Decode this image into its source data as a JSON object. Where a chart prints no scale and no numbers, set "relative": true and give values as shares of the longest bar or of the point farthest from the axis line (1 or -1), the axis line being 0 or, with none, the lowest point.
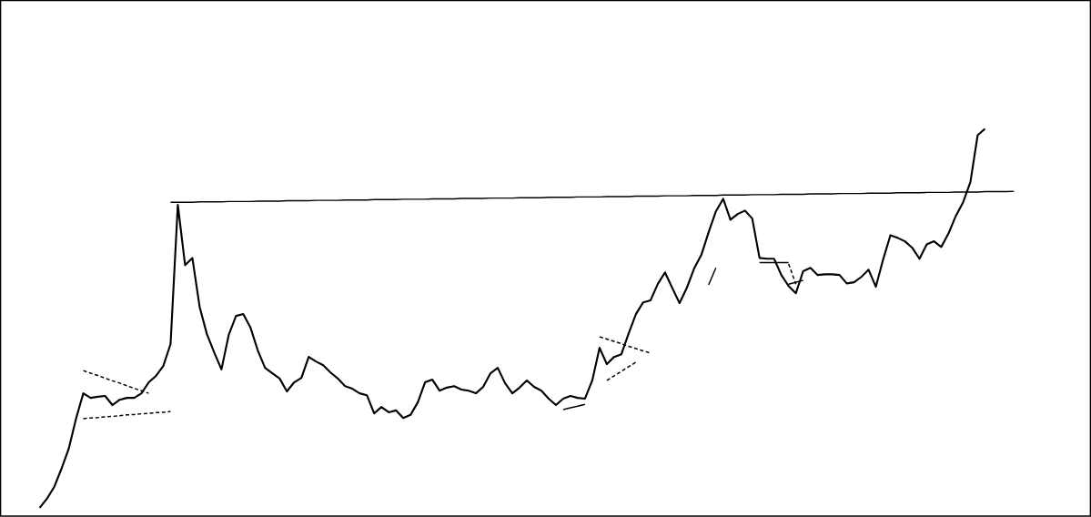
{
  "chart_data": {
    "type": "line",
    "relative": true,
    "tick_labels": false,
    "marker": "none",
    "categories": [
      null,
      null,
      null,
      null,
      null,
      null,
      null,
      null,
      null,
      null,
      null,
      null,
      null,
      null,
      null,
      null,
      null,
      null,
      null,
      null,
      null,
      null,
      null,
      null,
      null,
      null,
      null,
      null,
      null,
      null,
      null,
      null,
      null,
      null,
      null,
      null,
      null,
      null,
      null,
      null,
      null,
      null,
      null,
      null,
      null,
      null,
      null,
      null,
      null,
      null,
      null,
      null,
      null,
      null,
      null,
      null,
      null,
      null,
      null,
      null,
      null,
      null,
      null,
      null,
      null,
      null,
      null,
      null,
      null,
      null,
      null,
      null,
      null,
      null,
      null,
      null,
      null,
      null,
      null,
      null,
      null,
      null,
      null,
      null,
      null,
      null,
      null,
      null,
      null,
      null,
      null,
      null,
      null,
      null,
      null,
      null,
      null,
      null,
      null,
      null,
      null,
      null,
      null,
      null,
      null,
      null,
      null,
      null,
      null,
      null,
      null,
      null,
      null,
      null,
      null,
      null,
      null,
      null,
      null,
      null,
      null,
      null,
      null,
      null,
      null,
      null,
      null,
      null,
      null,
      null,
      null,
      null,
      null,
      null,
      null
    ],
    "series": [
      {
        "color": "#000000",
        "line_style": "solid",
        "values": [
          0,
          0.024,
          0.055,
          0.103,
          0.156,
          0.235,
          0.302,
          0.29,
          0.293,
          0.295,
          0.271,
          0.285,
          0.29,
          0.29,
          0.302,
          0.331,
          0.348,
          0.374,
          0.432,
          0.799,
          0.64,
          0.659,
          0.53,
          0.458,
          0.41,
          0.365,
          0.456,
          0.506,
          0.511,
          0.475,
          0.415,
          0.369,
          0.355,
          0.341,
          0.307,
          0.331,
          0.343,
          0.398,
          0.386,
          0.376,
          0.357,
          0.341,
          0.321,
          0.314,
          0.302,
          0.297,
          0.249,
          0.266,
          0.252,
          0.257,
          0.237,
          0.245,
          0.278,
          0.331,
          0.338,
          0.309,
          0.317,
          0.321,
          0.312,
          0.309,
          0.302,
          0.319,
          0.355,
          0.369,
          0.329,
          0.302,
          0.317,
          0.336,
          0.319,
          0.309,
          0.288,
          0.271,
          0.288,
          0.295,
          0.29,
          0.288,
          0.336,
          0.422,
          0.379,
          0.398,
          0.405,
          0.46,
          0.511,
          0.542,
          0.547,
          0.59,
          0.621,
          0.58,
          0.54,
          0.58,
          0.631,
          0.667,
          0.727,
          0.782,
          0.815,
          0.76,
          0.775,
          0.784,
          0.763,
          0.659,
          0.657,
          0.657,
          0.614,
          0.585,
          0.566,
          0.624,
          0.633,
          0.614,
          0.616,
          0.616,
          0.614,
          0.592,
          0.595,
          0.609,
          0.628,
          0.583,
          0.655,
          0.719,
          0.712,
          0.703,
          0.686,
          0.657,
          0.695,
          0.703,
          0.688,
          0.724,
          0.77,
          0.806,
          0.859,
          0.983,
          1,
          null,
          null,
          null,
          null
        ]
      },
      {
        "color": "#000000",
        "line_style": "solid",
        "values": [
          null,
          null,
          null,
          null,
          null,
          null,
          null,
          null,
          null,
          null,
          null,
          null,
          null,
          null,
          null,
          null,
          null,
          null,
          0.806,
          0.806,
          0.806,
          0.806,
          0.807,
          0.807,
          0.807,
          0.807,
          0.808,
          0.808,
          0.808,
          0.808,
          0.809,
          0.809,
          0.809,
          0.809,
          0.81,
          0.81,
          0.81,
          0.81,
          0.811,
          0.811,
          0.811,
          0.811,
          0.812,
          0.812,
          0.812,
          0.812,
          0.813,
          0.813,
          0.813,
          0.813,
          0.814,
          0.814,
          0.814,
          0.814,
          0.815,
          0.815,
          0.815,
          0.815,
          0.816,
          0.816,
          0.816,
          0.816,
          0.817,
          0.817,
          0.817,
          0.817,
          0.818,
          0.818,
          0.818,
          0.818,
          0.819,
          0.819,
          0.819,
          0.819,
          0.82,
          0.82,
          0.82,
          0.82,
          0.821,
          0.821,
          0.821,
          0.821,
          0.822,
          0.822,
          0.822,
          0.822,
          0.823,
          0.823,
          0.823,
          0.823,
          0.824,
          0.824,
          0.824,
          0.824,
          0.825,
          0.825,
          0.825,
          0.825,
          0.826,
          0.826,
          0.826,
          0.826,
          0.827,
          0.827,
          0.827,
          0.827,
          0.828,
          0.828,
          0.828,
          0.828,
          0.829,
          0.829,
          0.829,
          0.829,
          0.83,
          0.83,
          0.83,
          0.83,
          0.831,
          0.831,
          0.831,
          0.831,
          0.832,
          0.832,
          0.832,
          0.832,
          0.833,
          0.833,
          0.833,
          0.833,
          0.834,
          0.834,
          0.834,
          0.834,
          0.835
        ]
      },
      {
        "color": "#000000",
        "line_style": "dashed",
        "values": [
          null,
          null,
          null,
          null,
          null,
          null,
          0.362,
          0.355,
          0.349,
          0.342,
          0.335,
          0.329,
          0.322,
          0.315,
          0.309,
          0.302,
          null,
          null,
          null,
          null,
          null,
          null,
          null,
          null,
          null,
          null,
          null,
          null,
          null,
          null,
          null,
          null,
          null,
          null,
          null,
          null,
          null,
          null,
          null,
          null,
          null,
          null,
          null,
          null,
          null,
          null,
          null,
          null,
          null,
          null,
          null,
          null,
          null,
          null,
          null,
          null,
          null,
          null,
          null,
          null,
          null,
          null,
          null,
          null,
          null,
          null,
          null,
          null,
          null,
          null,
          null,
          null,
          null,
          null,
          null,
          null,
          null,
          null,
          null,
          null,
          null,
          null,
          null,
          null,
          null,
          null,
          null,
          null,
          null,
          null,
          null,
          null,
          null,
          null,
          null,
          null,
          null,
          null,
          null,
          null,
          null,
          null,
          null,
          null,
          null,
          null,
          null,
          null,
          null,
          null,
          null,
          null,
          null,
          null,
          null,
          null,
          null,
          null,
          null,
          null,
          null,
          null,
          null,
          null,
          null,
          null,
          null,
          null,
          null,
          null,
          null,
          null,
          null,
          null,
          null
        ]
      },
      {
        "color": "#000000",
        "line_style": "dashed",
        "values": [
          null,
          null,
          null,
          null,
          null,
          null,
          0.235,
          0.237,
          0.238,
          0.24,
          0.241,
          0.243,
          0.245,
          0.246,
          0.248,
          0.249,
          0.251,
          0.252,
          0.254,
          null,
          null,
          null,
          null,
          null,
          null,
          null,
          null,
          null,
          null,
          null,
          null,
          null,
          null,
          null,
          null,
          null,
          null,
          null,
          null,
          null,
          null,
          null,
          null,
          null,
          null,
          null,
          null,
          null,
          null,
          null,
          null,
          null,
          null,
          null,
          null,
          null,
          null,
          null,
          null,
          null,
          null,
          null,
          null,
          null,
          null,
          null,
          null,
          null,
          null,
          null,
          null,
          null,
          null,
          null,
          null,
          null,
          null,
          null,
          null,
          null,
          null,
          null,
          null,
          null,
          null,
          null,
          null,
          null,
          null,
          null,
          null,
          null,
          null,
          null,
          null,
          null,
          null,
          null,
          null,
          null,
          null,
          null,
          null,
          null,
          null,
          null,
          null,
          null,
          null,
          null,
          null,
          null,
          null,
          null,
          null,
          null,
          null,
          null,
          null,
          null,
          null,
          null,
          null,
          null,
          null,
          null,
          null,
          null,
          null,
          null,
          null,
          null,
          null,
          null,
          null
        ]
      },
      {
        "color": "#000000",
        "line_style": "dashed",
        "values": [
          null,
          null,
          null,
          null,
          null,
          null,
          null,
          null,
          null,
          null,
          null,
          null,
          null,
          null,
          null,
          null,
          null,
          null,
          null,
          null,
          null,
          null,
          null,
          null,
          null,
          null,
          null,
          null,
          null,
          null,
          null,
          null,
          null,
          null,
          null,
          null,
          null,
          null,
          null,
          null,
          null,
          null,
          null,
          null,
          null,
          null,
          null,
          null,
          null,
          null,
          null,
          null,
          null,
          null,
          null,
          null,
          null,
          null,
          null,
          null,
          null,
          null,
          null,
          null,
          null,
          null,
          null,
          null,
          null,
          null,
          null,
          null,
          null,
          null,
          null,
          null,
          null,
          0.451,
          0.445,
          0.439,
          0.433,
          0.426,
          0.42,
          0.414,
          0.408,
          null,
          null,
          null,
          null,
          null,
          null,
          null,
          null,
          null,
          null,
          null,
          null,
          null,
          null,
          null,
          null,
          null,
          null,
          null,
          null,
          null,
          null,
          null,
          null,
          null,
          null,
          null,
          null,
          null,
          null,
          null,
          null,
          null,
          null,
          null,
          null,
          null,
          null,
          null,
          null,
          null,
          null,
          null,
          null,
          null,
          null,
          null,
          null,
          null,
          null
        ]
      },
      {
        "color": "#000000",
        "line_style": "dashed",
        "values": [
          null,
          null,
          null,
          null,
          null,
          null,
          null,
          null,
          null,
          null,
          null,
          null,
          null,
          null,
          null,
          null,
          null,
          null,
          null,
          null,
          null,
          null,
          null,
          null,
          null,
          null,
          null,
          null,
          null,
          null,
          null,
          null,
          null,
          null,
          null,
          null,
          null,
          null,
          null,
          null,
          null,
          null,
          null,
          null,
          null,
          null,
          null,
          null,
          null,
          null,
          null,
          null,
          null,
          null,
          null,
          null,
          null,
          null,
          null,
          null,
          null,
          null,
          null,
          null,
          null,
          null,
          null,
          null,
          null,
          null,
          null,
          null,
          null,
          null,
          null,
          null,
          null,
          null,
          0.336,
          0.348,
          0.36,
          0.372,
          0.384,
          null,
          null,
          null,
          null,
          null,
          null,
          null,
          null,
          null,
          null,
          null,
          null,
          null,
          null,
          null,
          null,
          null,
          null,
          null,
          null,
          null,
          null,
          null,
          null,
          null,
          null,
          null,
          null,
          null,
          null,
          null,
          null,
          null,
          null,
          null,
          null,
          null,
          null,
          null,
          null,
          null,
          null,
          null,
          null,
          null,
          null,
          null,
          null,
          null,
          null,
          null,
          null
        ]
      },
      {
        "color": "#000000",
        "line_style": "solid",
        "values": [
          null,
          null,
          null,
          null,
          null,
          null,
          null,
          null,
          null,
          null,
          null,
          null,
          null,
          null,
          null,
          null,
          null,
          null,
          null,
          null,
          null,
          null,
          null,
          null,
          null,
          null,
          null,
          null,
          null,
          null,
          null,
          null,
          null,
          null,
          null,
          null,
          null,
          null,
          null,
          null,
          null,
          null,
          null,
          null,
          null,
          null,
          null,
          null,
          null,
          null,
          null,
          null,
          null,
          null,
          null,
          null,
          null,
          null,
          null,
          null,
          null,
          null,
          null,
          null,
          null,
          null,
          null,
          null,
          null,
          null,
          null,
          null,
          0.259,
          0.264,
          0.268,
          0.273,
          null,
          null,
          null,
          null,
          null,
          null,
          null,
          null,
          null,
          null,
          null,
          null,
          null,
          null,
          null,
          null,
          null,
          null,
          null,
          null,
          null,
          null,
          null,
          null,
          null,
          null,
          null,
          null,
          null,
          null,
          null,
          null,
          null,
          null,
          null,
          null,
          null,
          null,
          null,
          null,
          null,
          null,
          null,
          null,
          null,
          null,
          null,
          null,
          null,
          null,
          null,
          null,
          null,
          null,
          null,
          null,
          null,
          null,
          null
        ]
      },
      {
        "color": "#000000",
        "line_style": "solid",
        "values": [
          null,
          null,
          null,
          null,
          null,
          null,
          null,
          null,
          null,
          null,
          null,
          null,
          null,
          null,
          null,
          null,
          null,
          null,
          null,
          null,
          null,
          null,
          null,
          null,
          null,
          null,
          null,
          null,
          null,
          null,
          null,
          null,
          null,
          null,
          null,
          null,
          null,
          null,
          null,
          null,
          null,
          null,
          null,
          null,
          null,
          null,
          null,
          null,
          null,
          null,
          null,
          null,
          null,
          null,
          null,
          null,
          null,
          null,
          null,
          null,
          null,
          null,
          null,
          null,
          null,
          null,
          null,
          null,
          null,
          null,
          null,
          null,
          null,
          null,
          null,
          null,
          null,
          null,
          null,
          null,
          null,
          null,
          null,
          null,
          null,
          null,
          null,
          null,
          null,
          null,
          null,
          null,
          0.588,
          0.633,
          null,
          null,
          null,
          null,
          null,
          null,
          null,
          null,
          null,
          null,
          null,
          null,
          null,
          null,
          null,
          null,
          null,
          null,
          null,
          null,
          null,
          null,
          null,
          null,
          null,
          null,
          null,
          null,
          null,
          null,
          null,
          null,
          null,
          null,
          null,
          null,
          null,
          null,
          null,
          null,
          null
        ]
      },
      {
        "color": "#000000",
        "line_style": "solid",
        "values": [
          null,
          null,
          null,
          null,
          null,
          null,
          null,
          null,
          null,
          null,
          null,
          null,
          null,
          null,
          null,
          null,
          null,
          null,
          null,
          null,
          null,
          null,
          null,
          null,
          null,
          null,
          null,
          null,
          null,
          null,
          null,
          null,
          null,
          null,
          null,
          null,
          null,
          null,
          null,
          null,
          null,
          null,
          null,
          null,
          null,
          null,
          null,
          null,
          null,
          null,
          null,
          null,
          null,
          null,
          null,
          null,
          null,
          null,
          null,
          null,
          null,
          null,
          null,
          null,
          null,
          null,
          null,
          null,
          null,
          null,
          null,
          null,
          null,
          null,
          null,
          null,
          null,
          null,
          null,
          null,
          null,
          null,
          null,
          null,
          null,
          null,
          null,
          null,
          null,
          null,
          null,
          null,
          null,
          null,
          null,
          null,
          null,
          null,
          null,
          0.647,
          0.647,
          0.647,
          0.647,
          0.647,
          null,
          null,
          null,
          null,
          null,
          null,
          null,
          null,
          null,
          null,
          null,
          null,
          null,
          null,
          null,
          null,
          null,
          null,
          null,
          null,
          null,
          null,
          null,
          null,
          null,
          null,
          null,
          null,
          null,
          null,
          null
        ]
      },
      {
        "color": "#000000",
        "line_style": "dashed",
        "values": [
          null,
          null,
          null,
          null,
          null,
          null,
          null,
          null,
          null,
          null,
          null,
          null,
          null,
          null,
          null,
          null,
          null,
          null,
          null,
          null,
          null,
          null,
          null,
          null,
          null,
          null,
          null,
          null,
          null,
          null,
          null,
          null,
          null,
          null,
          null,
          null,
          null,
          null,
          null,
          null,
          null,
          null,
          null,
          null,
          null,
          null,
          null,
          null,
          null,
          null,
          null,
          null,
          null,
          null,
          null,
          null,
          null,
          null,
          null,
          null,
          null,
          null,
          null,
          null,
          null,
          null,
          null,
          null,
          null,
          null,
          null,
          null,
          null,
          null,
          null,
          null,
          null,
          null,
          null,
          null,
          null,
          null,
          null,
          null,
          null,
          null,
          null,
          null,
          null,
          null,
          null,
          null,
          null,
          null,
          null,
          null,
          null,
          null,
          null,
          null,
          null,
          null,
          null,
          0.643,
          0.59,
          null,
          null,
          null,
          null,
          null,
          null,
          null,
          null,
          null,
          null,
          null,
          null,
          null,
          null,
          null,
          null,
          null,
          null,
          null,
          null,
          null,
          null,
          null,
          null,
          null,
          null,
          null,
          null,
          null,
          null
        ]
      },
      {
        "color": "#000000",
        "line_style": "solid",
        "values": [
          null,
          null,
          null,
          null,
          null,
          null,
          null,
          null,
          null,
          null,
          null,
          null,
          null,
          null,
          null,
          null,
          null,
          null,
          null,
          null,
          null,
          null,
          null,
          null,
          null,
          null,
          null,
          null,
          null,
          null,
          null,
          null,
          null,
          null,
          null,
          null,
          null,
          null,
          null,
          null,
          null,
          null,
          null,
          null,
          null,
          null,
          null,
          null,
          null,
          null,
          null,
          null,
          null,
          null,
          null,
          null,
          null,
          null,
          null,
          null,
          null,
          null,
          null,
          null,
          null,
          null,
          null,
          null,
          null,
          null,
          null,
          null,
          null,
          null,
          null,
          null,
          null,
          null,
          null,
          null,
          null,
          null,
          null,
          null,
          null,
          null,
          null,
          null,
          null,
          null,
          null,
          null,
          null,
          null,
          null,
          null,
          null,
          null,
          null,
          null,
          null,
          null,
          null,
          0.59,
          0.595,
          0.6,
          null,
          null,
          null,
          null,
          null,
          null,
          null,
          null,
          null,
          null,
          null,
          null,
          null,
          null,
          null,
          null,
          null,
          null,
          null,
          null,
          null,
          null,
          null,
          null,
          null,
          null,
          null,
          null,
          null
        ]
      }
    ]
  }
}
